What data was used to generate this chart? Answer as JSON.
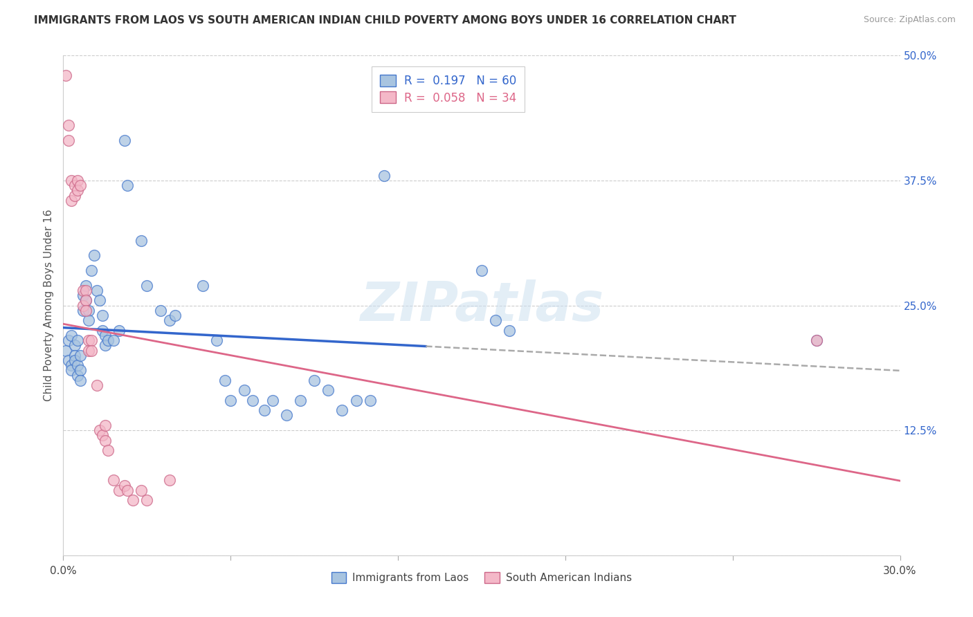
{
  "title": "IMMIGRANTS FROM LAOS VS SOUTH AMERICAN INDIAN CHILD POVERTY AMONG BOYS UNDER 16 CORRELATION CHART",
  "source": "Source: ZipAtlas.com",
  "ylabel": "Child Poverty Among Boys Under 16",
  "xlim": [
    0.0,
    0.3
  ],
  "ylim": [
    0.0,
    0.5
  ],
  "xtick_positions": [
    0.0,
    0.06,
    0.12,
    0.18,
    0.24,
    0.3
  ],
  "xtick_labels": [
    "0.0%",
    "",
    "",
    "",
    "",
    "30.0%"
  ],
  "ytick_positions": [
    0.0,
    0.125,
    0.25,
    0.375,
    0.5
  ],
  "right_ytick_labels": [
    "",
    "12.5%",
    "25.0%",
    "37.5%",
    "50.0%"
  ],
  "watermark": "ZIPatlas",
  "blue_fill": "#a8c4e0",
  "blue_edge": "#4477cc",
  "pink_fill": "#f4b8c8",
  "pink_edge": "#cc6688",
  "blue_line": "#3366cc",
  "pink_line": "#dd6688",
  "dash_line": "#aaaaaa",
  "blue_scatter": [
    [
      0.001,
      0.205
    ],
    [
      0.002,
      0.195
    ],
    [
      0.002,
      0.215
    ],
    [
      0.003,
      0.22
    ],
    [
      0.003,
      0.19
    ],
    [
      0.003,
      0.185
    ],
    [
      0.004,
      0.21
    ],
    [
      0.004,
      0.2
    ],
    [
      0.004,
      0.195
    ],
    [
      0.005,
      0.215
    ],
    [
      0.005,
      0.18
    ],
    [
      0.005,
      0.19
    ],
    [
      0.006,
      0.2
    ],
    [
      0.006,
      0.185
    ],
    [
      0.006,
      0.175
    ],
    [
      0.007,
      0.26
    ],
    [
      0.007,
      0.245
    ],
    [
      0.008,
      0.27
    ],
    [
      0.008,
      0.255
    ],
    [
      0.009,
      0.245
    ],
    [
      0.009,
      0.235
    ],
    [
      0.01,
      0.285
    ],
    [
      0.011,
      0.3
    ],
    [
      0.012,
      0.265
    ],
    [
      0.013,
      0.255
    ],
    [
      0.014,
      0.24
    ],
    [
      0.014,
      0.225
    ],
    [
      0.015,
      0.22
    ],
    [
      0.015,
      0.21
    ],
    [
      0.016,
      0.215
    ],
    [
      0.018,
      0.215
    ],
    [
      0.02,
      0.225
    ],
    [
      0.022,
      0.415
    ],
    [
      0.023,
      0.37
    ],
    [
      0.028,
      0.315
    ],
    [
      0.03,
      0.27
    ],
    [
      0.035,
      0.245
    ],
    [
      0.038,
      0.235
    ],
    [
      0.04,
      0.24
    ],
    [
      0.05,
      0.27
    ],
    [
      0.055,
      0.215
    ],
    [
      0.058,
      0.175
    ],
    [
      0.06,
      0.155
    ],
    [
      0.065,
      0.165
    ],
    [
      0.068,
      0.155
    ],
    [
      0.072,
      0.145
    ],
    [
      0.075,
      0.155
    ],
    [
      0.08,
      0.14
    ],
    [
      0.085,
      0.155
    ],
    [
      0.09,
      0.175
    ],
    [
      0.095,
      0.165
    ],
    [
      0.1,
      0.145
    ],
    [
      0.105,
      0.155
    ],
    [
      0.11,
      0.155
    ],
    [
      0.115,
      0.38
    ],
    [
      0.15,
      0.285
    ],
    [
      0.155,
      0.235
    ],
    [
      0.16,
      0.225
    ],
    [
      0.27,
      0.215
    ]
  ],
  "pink_scatter": [
    [
      0.001,
      0.48
    ],
    [
      0.002,
      0.43
    ],
    [
      0.002,
      0.415
    ],
    [
      0.003,
      0.375
    ],
    [
      0.003,
      0.355
    ],
    [
      0.004,
      0.37
    ],
    [
      0.004,
      0.36
    ],
    [
      0.005,
      0.375
    ],
    [
      0.005,
      0.365
    ],
    [
      0.006,
      0.37
    ],
    [
      0.007,
      0.265
    ],
    [
      0.007,
      0.25
    ],
    [
      0.008,
      0.265
    ],
    [
      0.008,
      0.255
    ],
    [
      0.008,
      0.245
    ],
    [
      0.009,
      0.215
    ],
    [
      0.009,
      0.205
    ],
    [
      0.01,
      0.215
    ],
    [
      0.01,
      0.205
    ],
    [
      0.012,
      0.17
    ],
    [
      0.013,
      0.125
    ],
    [
      0.014,
      0.12
    ],
    [
      0.015,
      0.13
    ],
    [
      0.015,
      0.115
    ],
    [
      0.016,
      0.105
    ],
    [
      0.018,
      0.075
    ],
    [
      0.02,
      0.065
    ],
    [
      0.022,
      0.07
    ],
    [
      0.023,
      0.065
    ],
    [
      0.025,
      0.055
    ],
    [
      0.028,
      0.065
    ],
    [
      0.03,
      0.055
    ],
    [
      0.038,
      0.075
    ],
    [
      0.27,
      0.215
    ]
  ],
  "background": "#ffffff",
  "grid_color": "#cccccc"
}
